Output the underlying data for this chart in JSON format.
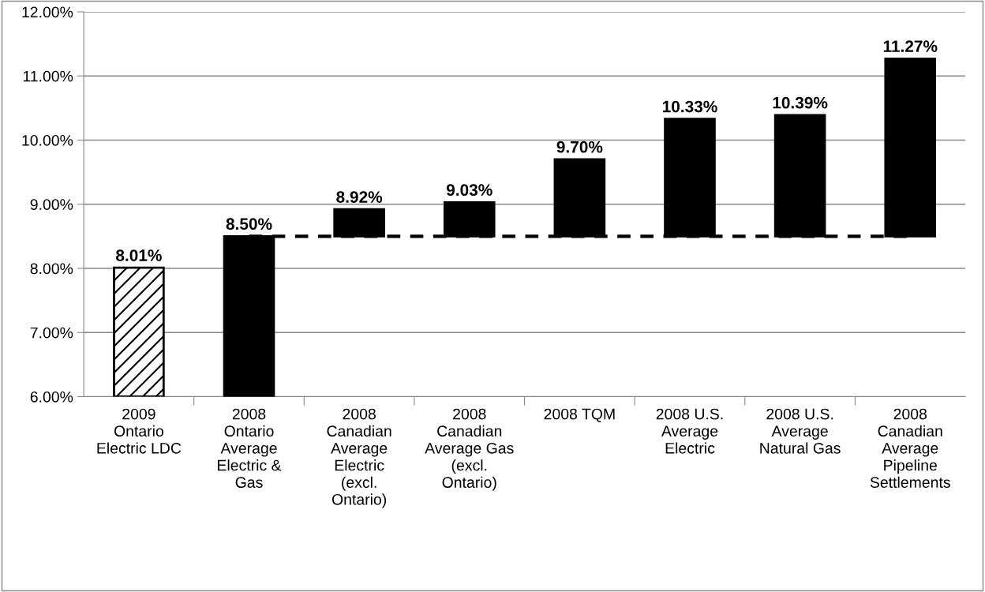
{
  "chart_data": {
    "type": "bar",
    "categories": [
      "2009\nOntario\nElectric LDC",
      "2008\nOntario\nAverage\nElectric &\nGas",
      "2008\nCanadian\nAverage\nElectric\n(excl.\nOntario)",
      "2008\nCanadian\nAverage Gas\n(excl.\nOntario)",
      "2008 TQM",
      "2008 U.S.\nAverage\nElectric",
      "2008 U.S.\nAverage\nNatural Gas",
      "2008\nCanadian\nAverage\nPipeline\nSettlements"
    ],
    "base": [
      6.0,
      6.0,
      8.5,
      8.5,
      8.5,
      8.5,
      8.5,
      8.5
    ],
    "values": [
      2.01,
      2.5,
      0.42,
      0.53,
      1.2,
      1.83,
      1.89,
      2.77
    ],
    "value_labels": [
      "8.01%",
      "8.50%",
      "8.92%",
      "9.03%",
      "9.70%",
      "10.33%",
      "10.39%",
      "11.27%"
    ],
    "colors": [
      "#ffffff",
      "#000000",
      "#000000",
      "#000000",
      "#000000",
      "#000000",
      "#000000",
      "#000000"
    ],
    "ylim": [
      6.0,
      12.0
    ],
    "yticks": [
      {
        "value": 6,
        "label": "6.00%"
      },
      {
        "value": 7,
        "label": "7.00%"
      },
      {
        "value": 8,
        "label": "8.00%"
      },
      {
        "value": 9,
        "label": "9.00%"
      },
      {
        "value": 10,
        "label": "10.00%"
      },
      {
        "value": 11,
        "label": "11.00%"
      },
      {
        "value": 12,
        "label": "12.00%"
      }
    ],
    "ref_lines": [
      {
        "axis": "y",
        "value": 8.5,
        "color": "#000000",
        "line_style": "dashed"
      }
    ],
    "grid": "y",
    "legend": false
  }
}
